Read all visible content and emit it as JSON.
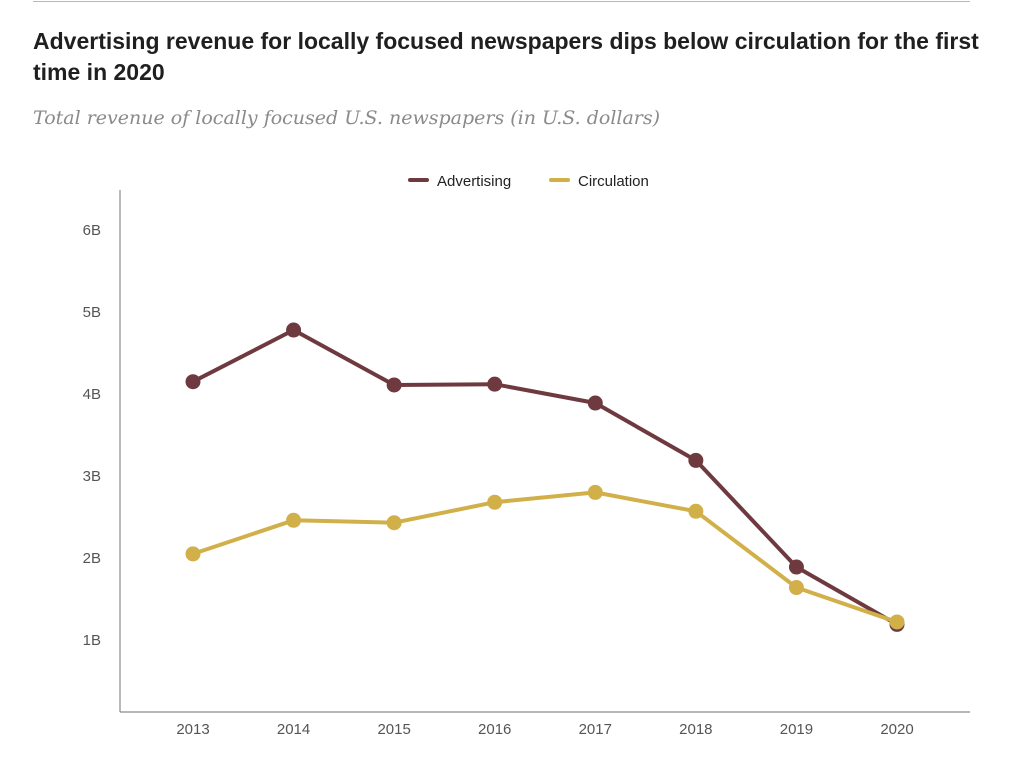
{
  "header": {
    "title": "Advertising revenue for locally focused newspapers dips below circulation for the first time in 2020",
    "subtitle": "Total revenue of locally focused U.S. newspapers (in U.S. dollars)"
  },
  "colors": {
    "advertising": "#6e3a3f",
    "circulation": "#d1b04a",
    "axis": "#8c8c8c"
  },
  "chart_data": {
    "type": "line",
    "title": "Advertising revenue for locally focused newspapers dips below circulation for the first time in 2020",
    "subtitle": "Total revenue of locally focused U.S. newspapers (in U.S. dollars)",
    "x": [
      "2013",
      "2014",
      "2015",
      "2016",
      "2017",
      "2018",
      "2019",
      "2020"
    ],
    "y_ticks": [
      1,
      2,
      3,
      4,
      5,
      6
    ],
    "y_tick_labels": [
      "1B",
      "2B",
      "3B",
      "4B",
      "5B",
      "6B"
    ],
    "ylim": [
      0.2,
      6.5
    ],
    "unit": "billion U.S. dollars",
    "legend": {
      "position": "top-center"
    },
    "grid": false,
    "series": [
      {
        "name": "Advertising",
        "color": "#6e3a3f",
        "values": [
          4.15,
          4.78,
          4.11,
          4.12,
          3.89,
          3.19,
          1.89,
          1.19
        ]
      },
      {
        "name": "Circulation",
        "color": "#d1b04a",
        "values": [
          2.05,
          2.46,
          2.43,
          2.68,
          2.8,
          2.57,
          1.64,
          1.22
        ]
      }
    ]
  }
}
